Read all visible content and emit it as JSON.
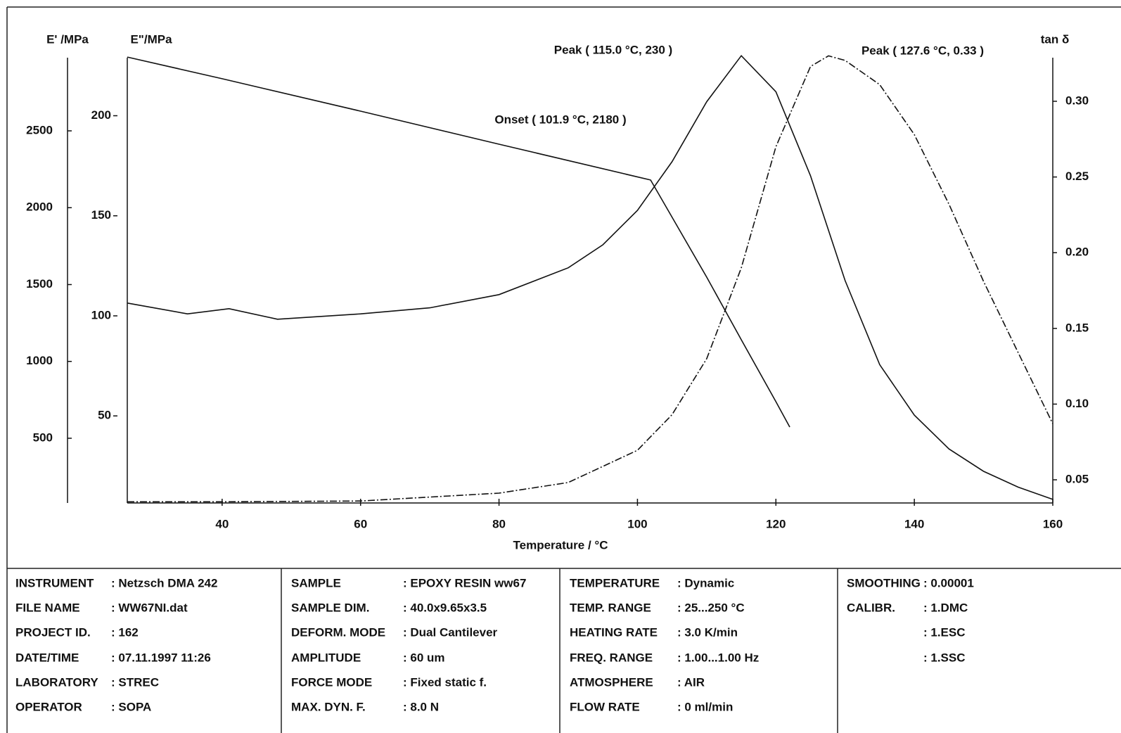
{
  "chart_data": {
    "type": "line",
    "xlabel": "Temperature / °C",
    "xlim": [
      26.3,
      160
    ],
    "xticks": [
      40,
      60,
      80,
      100,
      120,
      140,
      160
    ],
    "axes": [
      {
        "label": "E' /MPa",
        "lim": [
          79,
          2976
        ],
        "ticks": [
          500,
          1000,
          1500,
          2000,
          2500
        ]
      },
      {
        "label": "E\"/MPa",
        "lim": [
          6.5,
          229
        ],
        "ticks": [
          50,
          100,
          150,
          200
        ]
      },
      {
        "label": "tan δ",
        "lim": [
          0.0347,
          0.3288
        ],
        "ticks": [
          0.05,
          {
            "value": 0.1,
            "label": "0.10"
          },
          0.15,
          {
            "value": 0.2,
            "label": "0.20"
          },
          0.25,
          {
            "value": 0.3,
            "label": "0.30"
          }
        ]
      }
    ],
    "series": [
      {
        "axis": 0,
        "color": "#111111",
        "x": [
          26.3,
          40,
          60,
          80,
          101.9,
          110,
          115,
          120,
          122
        ],
        "values": [
          2980,
          2839,
          2628,
          2413,
          2180,
          1548,
          1141,
          738,
          573
        ]
      },
      {
        "axis": 1,
        "color": "#111111",
        "x": [
          26.3,
          35,
          41,
          48,
          60,
          70,
          80,
          90,
          95,
          100,
          105,
          110,
          115,
          120,
          125,
          130,
          135,
          140,
          145,
          150,
          155,
          160
        ],
        "values": [
          106.4,
          101,
          103.6,
          98.3,
          101,
          104,
          110.6,
          124,
          135.5,
          152.7,
          177,
          207,
          230,
          212,
          170,
          117.6,
          75.6,
          50.4,
          33.5,
          22.3,
          14.4,
          8.3
        ]
      },
      {
        "axis": 2,
        "color": "#111111",
        "x": [
          26.3,
          40,
          60,
          80,
          90,
          100,
          105,
          110,
          115,
          120,
          125,
          127.6,
          130,
          135,
          140,
          145,
          150,
          155,
          160
        ],
        "values": [
          0.0355,
          0.0355,
          0.036,
          0.0412,
          0.0482,
          0.0695,
          0.093,
          0.13,
          0.19,
          0.27,
          0.323,
          0.33,
          0.327,
          0.311,
          0.278,
          0.232,
          0.181,
          0.134,
          0.087
        ]
      }
    ],
    "annotations": [
      "Peak ( 115.0 °C, 230 )",
      "Onset ( 101.9 °C, 2180 )",
      "Peak ( 127.6 °C, 0.33 )"
    ]
  },
  "info": {
    "columns": [
      [
        {
          "label": "INSTRUMENT",
          "value": ": Netzsch DMA 242"
        },
        {
          "label": "FILE NAME",
          "value": ": WW67NI.dat"
        },
        {
          "label": "PROJECT ID.",
          "value": ": 162"
        },
        {
          "label": "DATE/TIME",
          "value": ": 07.11.1997 11:26"
        },
        {
          "label": "LABORATORY",
          "value": ": STREC"
        },
        {
          "label": "OPERATOR",
          "value": ": SOPA"
        }
      ],
      [
        {
          "label": "SAMPLE",
          "value": ": EPOXY RESIN ww67"
        },
        {
          "label": "SAMPLE DIM.",
          "value": ": 40.0x9.65x3.5"
        },
        {
          "label": "DEFORM. MODE",
          "value": ": Dual Cantilever"
        },
        {
          "label": "AMPLITUDE",
          "value": ": 60 um"
        },
        {
          "label": "FORCE MODE",
          "value": ": Fixed static f."
        },
        {
          "label": "MAX. DYN. F.",
          "value": ": 8.0 N"
        }
      ],
      [
        {
          "label": "TEMPERATURE",
          "value": ": Dynamic"
        },
        {
          "label": "TEMP. RANGE",
          "value": ": 25...250 °C"
        },
        {
          "label": "HEATING RATE",
          "value": ": 3.0 K/min"
        },
        {
          "label": "FREQ. RANGE",
          "value": ": 1.00...1.00 Hz"
        },
        {
          "label": "ATMOSPHERE",
          "value": ": AIR"
        },
        {
          "label": "FLOW RATE",
          "value": ": 0 ml/min"
        }
      ],
      [
        {
          "label": "SMOOTHING",
          "value": ": 0.00001"
        },
        {
          "label": "CALIBR.",
          "value": ": 1.DMC"
        },
        {
          "value": ": 1.ESC"
        },
        {
          "value": ": 1.SSC"
        }
      ]
    ]
  }
}
